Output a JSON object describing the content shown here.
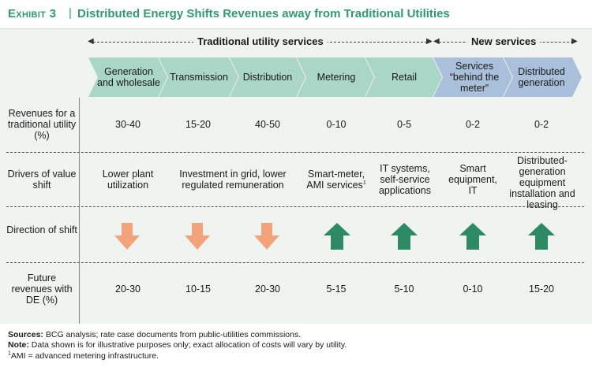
{
  "header": {
    "exhibit": "Exhibit 3",
    "separator": "|",
    "title": "Distributed Energy Shifts Revenues away from Traditional Utilities"
  },
  "groups": {
    "traditional": "Traditional utility services",
    "new": "New services"
  },
  "segments": [
    {
      "label": "Generation and wholesale",
      "group": "traditional"
    },
    {
      "label": "Transmission",
      "group": "traditional"
    },
    {
      "label": "Distribution",
      "group": "traditional"
    },
    {
      "label": "Metering",
      "group": "traditional"
    },
    {
      "label": "Retail",
      "group": "traditional"
    },
    {
      "label": "Services “behind the meter”",
      "group": "new"
    },
    {
      "label": "Distributed generation",
      "group": "new"
    }
  ],
  "rows": {
    "revenues_label": "Revenues for a traditional utility (%)",
    "revenues": [
      "30-40",
      "15-20",
      "40-50",
      "0-10",
      "0-5",
      "0-2",
      "0-2"
    ],
    "drivers_label": "Drivers of value shift",
    "drivers": [
      "Lower plant utilization",
      "Investment in grid, lower regulated remuneration",
      "Smart-meter, AMI services",
      "IT systems, self-service applications",
      "Smart equipment, IT",
      "Distributed-generation equipment installation and leasing"
    ],
    "drivers_footnote_mark": "1",
    "direction_label": "Direction of shift",
    "direction": [
      "down",
      "down",
      "down",
      "up",
      "up",
      "up",
      "up"
    ],
    "future_label": "Future revenues with DE (%)",
    "future": [
      "20-30",
      "10-15",
      "20-30",
      "5-15",
      "5-10",
      "0-10",
      "15-20"
    ]
  },
  "colors": {
    "title_green": "#2f9a72",
    "chevron_green": "#a9d6c6",
    "chevron_blue": "#a9bfda",
    "arrow_down": "#f2a37c",
    "arrow_up": "#2e8a64",
    "panel_bg": "#eff4f1"
  },
  "footnotes": {
    "sources_label": "Sources:",
    "sources": "BCG analysis; rate case documents from public-utilities commissions.",
    "note_label": "Note:",
    "note": "Data shown is for illustrative purposes only; exact allocation of costs will vary by utility.",
    "ami_mark": "1",
    "ami": "AMI = advanced metering infrastructure."
  }
}
